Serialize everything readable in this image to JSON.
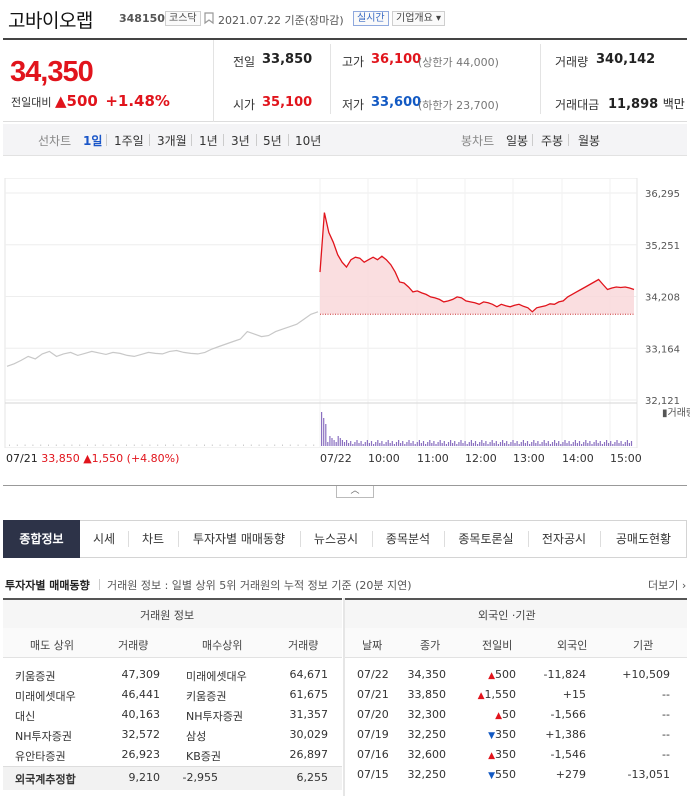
{
  "header": {
    "company": "고바이오랩",
    "code": "348150",
    "market": "코스닥",
    "date_text": "2021.07.22 기준(장마감)",
    "live_label": "실시간",
    "info_label": "기업개요 ▾"
  },
  "price": {
    "current": "34,350",
    "change_label": "전일대비",
    "change_arrow": "▲",
    "change": "500",
    "change_pct": "+1.48%"
  },
  "stats": {
    "prev_label": "전일",
    "prev": "33,850",
    "high_label": "고가",
    "high": "36,100",
    "upper_limit": "(상한가 44,000)",
    "volume_label": "거래량",
    "volume": "340,142",
    "open_label": "시가",
    "open": "35,100",
    "low_label": "저가",
    "low": "33,600",
    "lower_limit": "(하한가 23,700)",
    "amount_label": "거래대금",
    "amount": "11,898",
    "amount_unit": "백만"
  },
  "periods": {
    "line_label": "선차트",
    "line_items": [
      "1일",
      "1주일",
      "3개월",
      "1년",
      "3년",
      "5년",
      "10년"
    ],
    "selected": "1일",
    "candle_label": "봉차트",
    "candle_items": [
      "일봉",
      "주봉",
      "월봉"
    ]
  },
  "chart_data": {
    "type": "line",
    "y_ticks": [
      "36,295",
      "35,251",
      "34,208",
      "33,164",
      "32,121"
    ],
    "ylim": [
      32121,
      36295
    ],
    "prev_close": 33850,
    "x_labels": [
      "07/22",
      "10:00",
      "11:00",
      "12:00",
      "13:00",
      "14:00",
      "15:00"
    ],
    "prev_day_label": "07/21",
    "prev_day_price": "33,850",
    "prev_day_change": "▲1,550 (+4.80%)",
    "volume_label": "거래량",
    "prev_day_series": [
      32800,
      32850,
      32920,
      33000,
      32950,
      33050,
      33100,
      33000,
      33050,
      33080,
      33020,
      33060,
      33100,
      33070,
      33040,
      33080,
      33060,
      33020,
      33000,
      33040,
      33080,
      33060,
      33050,
      33100,
      33120,
      33080,
      33060,
      33050,
      33080,
      33150,
      33200,
      33250,
      33300,
      33350,
      33500,
      33450,
      33400,
      33420,
      33500,
      33550,
      33600,
      33650,
      33750,
      33850,
      33900
    ],
    "today_series": [
      34700,
      35900,
      35500,
      35300,
      35050,
      34900,
      34800,
      34950,
      35000,
      34980,
      34900,
      34950,
      35000,
      34950,
      35020,
      34950,
      34850,
      34700,
      34500,
      34480,
      34400,
      34300,
      34320,
      34280,
      34250,
      34200,
      34180,
      34150,
      34100,
      34120,
      34150,
      34200,
      34180,
      34120,
      34100,
      34080,
      34050,
      34100,
      34080,
      34050,
      34000,
      34050,
      34020,
      34000,
      34030,
      34050,
      34010,
      33980,
      33900,
      33980,
      34000,
      34020,
      34060,
      34050,
      34100,
      34120,
      34200,
      34250,
      34300,
      34350,
      34400,
      34450,
      34500,
      34550,
      34450,
      34350,
      34380,
      34400,
      34390,
      34400,
      34380,
      34350
    ]
  },
  "tabs": [
    "종합정보",
    "시세",
    "차트",
    "투자자별 매매동향",
    "뉴스공시",
    "종목분석",
    "종목토론실",
    "전자공시",
    "공매도현황"
  ],
  "investor": {
    "title": "투자자별 매매동향",
    "desc": "거래원 정보 : 일별 상위 5위 거래원의 누적 정보 기준 (20분 지연)",
    "more": "더보기 ›",
    "broker_header": "거래원 정보",
    "broker_cols": [
      "매도 상위",
      "거래량",
      "매수상위",
      "거래량"
    ],
    "brokers": [
      {
        "sell": "키움증권",
        "sell_vol": "47,309",
        "buy": "미래에셋대우",
        "buy_vol": "64,671"
      },
      {
        "sell": "미래에셋대우",
        "sell_vol": "46,441",
        "buy": "키움증권",
        "buy_vol": "61,675"
      },
      {
        "sell": "대신",
        "sell_vol": "40,163",
        "buy": "NH투자증권",
        "buy_vol": "31,357"
      },
      {
        "sell": "NH투자증권",
        "sell_vol": "32,572",
        "buy": "삼성",
        "buy_vol": "30,029"
      },
      {
        "sell": "유안타증권",
        "sell_vol": "26,923",
        "buy": "KB증권",
        "buy_vol": "26,897"
      }
    ],
    "foreign_total": {
      "label": "외국계추정합",
      "sell": "9,210",
      "net": "-2,955",
      "buy": "6,255"
    },
    "flow_header": "외국인 ·기관",
    "flow_cols": [
      "날짜",
      "종가",
      "전일비",
      "외국인",
      "기관"
    ],
    "flows": [
      {
        "date": "07/22",
        "close": "34,350",
        "arrow": "▲",
        "diff": "500",
        "dir": "up",
        "foreign": "-11,824",
        "inst": "+10,509"
      },
      {
        "date": "07/21",
        "close": "33,850",
        "arrow": "▲",
        "diff": "1,550",
        "dir": "up",
        "foreign": "+15",
        "inst": "--"
      },
      {
        "date": "07/20",
        "close": "32,300",
        "arrow": "▲",
        "diff": "50",
        "dir": "up",
        "foreign": "-1,566",
        "inst": "--"
      },
      {
        "date": "07/19",
        "close": "32,250",
        "arrow": "▼",
        "diff": "350",
        "dir": "down",
        "foreign": "+1,386",
        "inst": "--"
      },
      {
        "date": "07/16",
        "close": "32,600",
        "arrow": "▲",
        "diff": "350",
        "dir": "up",
        "foreign": "-1,546",
        "inst": "--"
      },
      {
        "date": "07/15",
        "close": "32,250",
        "arrow": "▼",
        "diff": "550",
        "dir": "down",
        "foreign": "+279",
        "inst": "-13,051"
      }
    ]
  },
  "colors": {
    "up": "#e1141c",
    "down": "#1259c3",
    "tab_active": "#2d3348"
  }
}
